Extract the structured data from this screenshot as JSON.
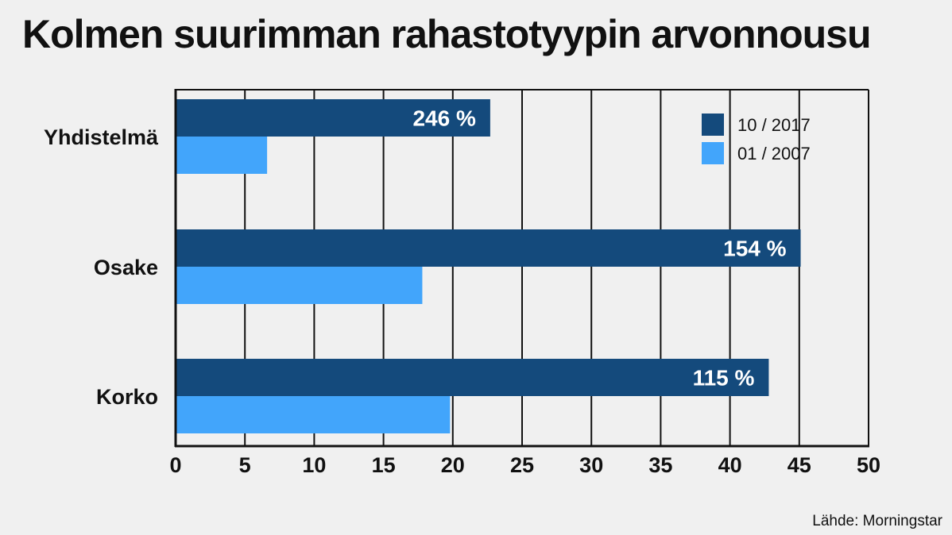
{
  "title": "Kolmen suurimman rahastotyypin arvonnousu",
  "source": "Lähde: Morningstar",
  "colors": {
    "series_10_2017": "#144a7c",
    "series_01_2007": "#42a5fb",
    "background": "#f0f0f0",
    "grid": "#111111"
  },
  "chart_data": {
    "type": "bar",
    "orientation": "horizontal",
    "categories": [
      "Yhdistelmä",
      "Osake",
      "Korko"
    ],
    "series": [
      {
        "name": "10 / 2017",
        "values": [
          22.7,
          45.1,
          42.8
        ],
        "labels": [
          "246 %",
          "154 %",
          "115 %"
        ]
      },
      {
        "name": "01 / 2007",
        "values": [
          6.6,
          17.8,
          19.8
        ]
      }
    ],
    "xlim": [
      0,
      50
    ],
    "xticks": [
      "0",
      "5",
      "10",
      "15",
      "20",
      "25",
      "30",
      "35",
      "40",
      "45",
      "50"
    ],
    "grid": true,
    "legend_position": "top-right"
  }
}
